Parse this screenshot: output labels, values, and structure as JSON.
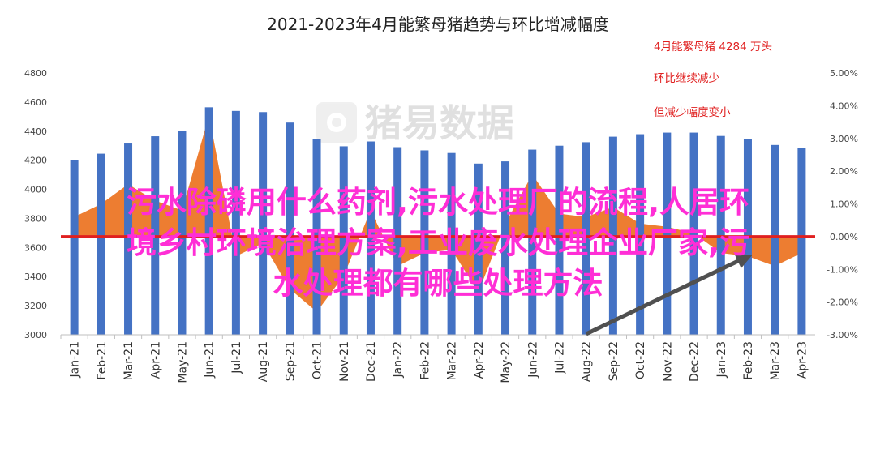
{
  "chart_data": {
    "type": "bar",
    "title": "2021-2023年4月能繁母猪趋势与环比增减幅度",
    "categories": [
      "Jan-21",
      "Feb-21",
      "Mar-21",
      "Apr-21",
      "May-21",
      "Jun-21",
      "Jul-21",
      "Aug-21",
      "Sep-21",
      "Oct-21",
      "Nov-21",
      "Dec-21",
      "Jan-22",
      "Feb-22",
      "Mar-22",
      "Apr-22",
      "May-22",
      "Jun-22",
      "Jul-22",
      "Aug-22",
      "Sep-22",
      "Oct-22",
      "Nov-22",
      "Dec-22",
      "Jan-23",
      "Feb-23",
      "Mar-23",
      "Apr-23"
    ],
    "series": [
      {
        "type": "bar",
        "axis": "left",
        "values": [
          4200,
          4245,
          4315,
          4365,
          4400,
          4564,
          4539,
          4531,
          4459,
          4348,
          4296,
          4329,
          4290,
          4268,
          4250,
          4177,
          4192,
          4273,
          4300,
          4324,
          4362,
          4379,
          4390,
          4390,
          4367,
          4343,
          4305,
          4284
        ]
      },
      {
        "type": "area",
        "axis": "right",
        "values": [
          0.6,
          1.0,
          1.6,
          1.1,
          0.8,
          3.7,
          -0.6,
          -0.2,
          -1.6,
          -2.3,
          -1.2,
          0.8,
          -0.9,
          -0.5,
          -0.4,
          -1.7,
          0.4,
          1.9,
          0.7,
          0.6,
          0.9,
          0.4,
          0.3,
          0.1,
          -0.5,
          -0.6,
          -0.9,
          -0.5
        ]
      }
    ],
    "y_left": {
      "ylim": [
        3000,
        4800
      ],
      "ticks": [
        "3000",
        "3200",
        "3400",
        "3600",
        "3800",
        "4000",
        "4200",
        "4400",
        "4600",
        "4800"
      ]
    },
    "y_right": {
      "ylim": [
        -3,
        5
      ],
      "ticks": [
        "-3.00%",
        "-2.00%",
        "-1.00%",
        "0.00%",
        "1.00%",
        "2.00%",
        "3.00%",
        "4.00%",
        "5.00%"
      ]
    },
    "reference_line": {
      "axis": "right",
      "value": 0
    },
    "annotations": [
      "4月能繁母猪 4284 万头",
      "环比继续减少",
      "但减少幅度变小"
    ],
    "watermark": "猪易数据",
    "grid": false,
    "colors": {
      "bar": "#4472c4",
      "area": "#ed7d31",
      "reference_line": "#e02020",
      "annotation_1": "#e02020",
      "annotation_2": "#e02020",
      "annotation_3": "#e02020",
      "arrow": "#505050"
    }
  },
  "overlay": {
    "lines": [
      "污水除磷用什么药剂,污水处理厂的流程,人居环",
      "境乡村环境治理方案,工业废水处理企业厂家,污",
      "水处理都有哪些处理方法"
    ],
    "color": "#ff2ed6"
  }
}
